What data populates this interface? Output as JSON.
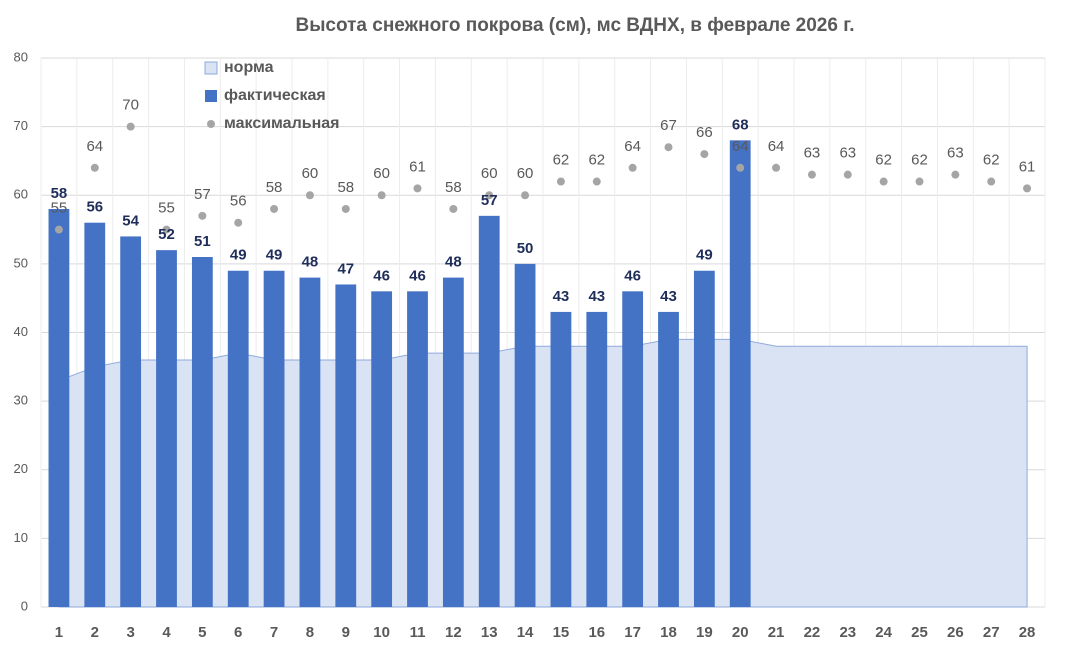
{
  "chart_data": {
    "type": "combo",
    "title": "Высота снежного покрова (см), мс ВДНХ, в феврале 2026 г.",
    "categories": [
      "1",
      "2",
      "3",
      "4",
      "5",
      "6",
      "7",
      "8",
      "9",
      "10",
      "11",
      "12",
      "13",
      "14",
      "15",
      "16",
      "17",
      "18",
      "19",
      "20",
      "21",
      "22",
      "23",
      "24",
      "25",
      "26",
      "27",
      "28"
    ],
    "series": [
      {
        "name": "норма",
        "type": "area",
        "color": "#dae3f3",
        "values": [
          33,
          35,
          36,
          36,
          36,
          37,
          36,
          36,
          36,
          36,
          37,
          37,
          37,
          38,
          38,
          38,
          38,
          39,
          39,
          39,
          38,
          38,
          38,
          38,
          38,
          38,
          38,
          38
        ]
      },
      {
        "name": "фактическая",
        "type": "bar",
        "color": "#4472c4",
        "values": [
          58,
          56,
          54,
          52,
          51,
          49,
          49,
          48,
          47,
          46,
          46,
          48,
          57,
          50,
          43,
          43,
          46,
          43,
          49,
          68,
          null,
          null,
          null,
          null,
          null,
          null,
          null,
          null
        ]
      },
      {
        "name": "максимальная",
        "type": "scatter",
        "color": "#a5a5a5",
        "values": [
          55,
          64,
          70,
          55,
          57,
          56,
          58,
          60,
          58,
          60,
          61,
          58,
          60,
          60,
          62,
          62,
          64,
          67,
          66,
          64,
          64,
          63,
          63,
          62,
          62,
          63,
          62,
          61
        ]
      }
    ],
    "ylim": [
      0,
      80
    ],
    "yticks": [
      0,
      10,
      20,
      30,
      40,
      50,
      60,
      70,
      80
    ],
    "grid": true
  }
}
